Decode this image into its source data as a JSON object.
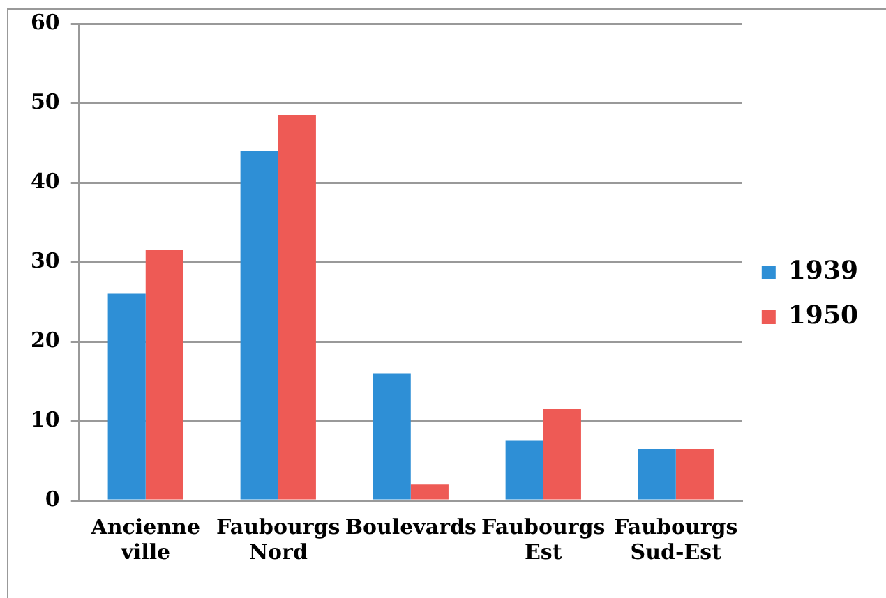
{
  "chart_data": {
    "type": "bar",
    "categories": [
      "Ancienne ville",
      "Faubourgs Nord",
      "Boulevards",
      "Faubourgs Est",
      "Faubourgs Sud-Est"
    ],
    "series": [
      {
        "name": "1939",
        "color": "#2e8fd6",
        "values": [
          26,
          44,
          16,
          7.5,
          6.5
        ]
      },
      {
        "name": "1950",
        "color": "#ee5a55",
        "values": [
          31.5,
          48.5,
          2,
          11.5,
          6.5
        ]
      }
    ],
    "ylim": [
      0,
      60
    ],
    "yticks": [
      0,
      10,
      20,
      30,
      40,
      50,
      60
    ],
    "grid": "y",
    "legend": "right"
  }
}
